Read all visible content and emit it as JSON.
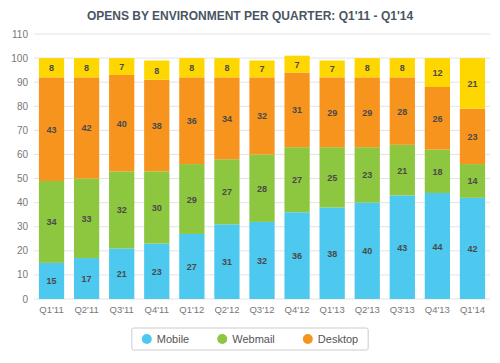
{
  "chart_data": {
    "type": "bar",
    "title": "OPENS BY ENVIRONMENT PER QUARTER: Q1'11 - Q1'14",
    "categories": [
      "Q1'11",
      "Q2'11",
      "Q3'11",
      "Q4'11",
      "Q1'12",
      "Q2'12",
      "Q3'12",
      "Q4'12",
      "Q1'13",
      "Q2'13",
      "Q3'13",
      "Q4'13",
      "Q1'14"
    ],
    "series": [
      {
        "name": "Mobile",
        "color": "#4dc8ef",
        "values": [
          15,
          17,
          21,
          23,
          27,
          31,
          32,
          36,
          38,
          40,
          43,
          44,
          42
        ]
      },
      {
        "name": "Webmail",
        "color": "#8dc63f",
        "values": [
          34,
          33,
          32,
          30,
          29,
          27,
          28,
          27,
          25,
          23,
          21,
          18,
          14
        ]
      },
      {
        "name": "Desktop",
        "color": "#f7941d",
        "values": [
          43,
          42,
          40,
          38,
          36,
          34,
          32,
          31,
          29,
          29,
          28,
          26,
          23
        ]
      },
      {
        "color": "#ffd700",
        "values": [
          8,
          8,
          7,
          8,
          8,
          8,
          7,
          7,
          7,
          8,
          8,
          12,
          21
        ]
      }
    ],
    "stacked": true,
    "data_labels": true,
    "ylim": [
      0,
      110
    ],
    "yticks": [
      0,
      10,
      20,
      30,
      40,
      50,
      60,
      70,
      80,
      90,
      100,
      110
    ],
    "grid": true,
    "legend": "bottom"
  }
}
